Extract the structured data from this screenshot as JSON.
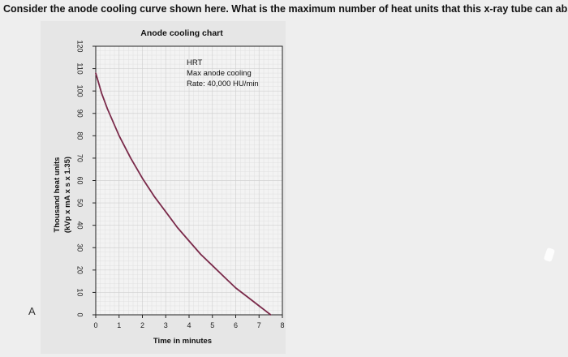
{
  "question": "Consider the anode cooling curve shown here. What is the maximum number of heat units that this x-ray tube can absorb?",
  "side_letter": "A",
  "chart_data": {
    "type": "line",
    "title": "Anode cooling chart",
    "xlabel": "Time in minutes",
    "ylabel_line1": "Thousand heat units",
    "ylabel_line2": "(kVp x mA x s x 1.35)",
    "xlim": [
      0,
      8
    ],
    "ylim": [
      0,
      120
    ],
    "xticks": [
      0,
      1,
      2,
      3,
      4,
      5,
      6,
      7,
      8
    ],
    "yticks": [
      0,
      10,
      20,
      30,
      40,
      50,
      60,
      70,
      80,
      90,
      100,
      110,
      120
    ],
    "annotation": [
      "HRT",
      "Max anode cooling",
      "Rate: 40,000 HU/min"
    ],
    "grid": true,
    "series": [
      {
        "color": "#7a2a4a",
        "x": [
          0,
          0.25,
          0.5,
          1,
          1.5,
          2,
          2.5,
          3,
          3.5,
          4,
          4.5,
          5,
          5.5,
          6,
          6.5,
          7,
          7.5
        ],
        "y": [
          108,
          99,
          92,
          80,
          70,
          61,
          53,
          46,
          39,
          33,
          27,
          22,
          17,
          12,
          8,
          4,
          0
        ]
      }
    ]
  }
}
